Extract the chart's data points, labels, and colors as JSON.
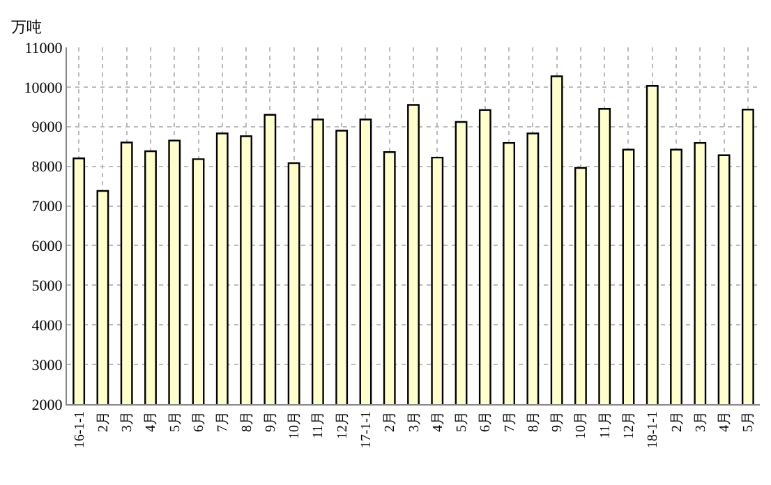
{
  "chart_data": {
    "type": "bar",
    "ylabel": "万吨",
    "categories": [
      "16-1-1",
      "2月",
      "3月",
      "4月",
      "5月",
      "6月",
      "7月",
      "8月",
      "9月",
      "10月",
      "11月",
      "12月",
      "17-1-1",
      "2月",
      "3月",
      "4月",
      "5月",
      "6月",
      "7月",
      "8月",
      "9月",
      "10月",
      "11月",
      "12月",
      "18-1-1",
      "2月",
      "3月",
      "4月",
      "5月"
    ],
    "series": [
      {
        "color": "#ffffcc",
        "values": [
          8200,
          7380,
          8600,
          8380,
          8650,
          8180,
          8830,
          8760,
          9300,
          8080,
          9180,
          8900,
          9180,
          8360,
          9550,
          8220,
          9120,
          9420,
          8590,
          8830,
          10270,
          7960,
          9450,
          8420,
          10030,
          8420,
          8590,
          8280,
          9430
        ]
      }
    ],
    "ylim": [
      2000,
      11000
    ],
    "yticks": [
      2000,
      3000,
      4000,
      5000,
      6000,
      7000,
      8000,
      9000,
      10000,
      11000
    ],
    "grid": true
  }
}
